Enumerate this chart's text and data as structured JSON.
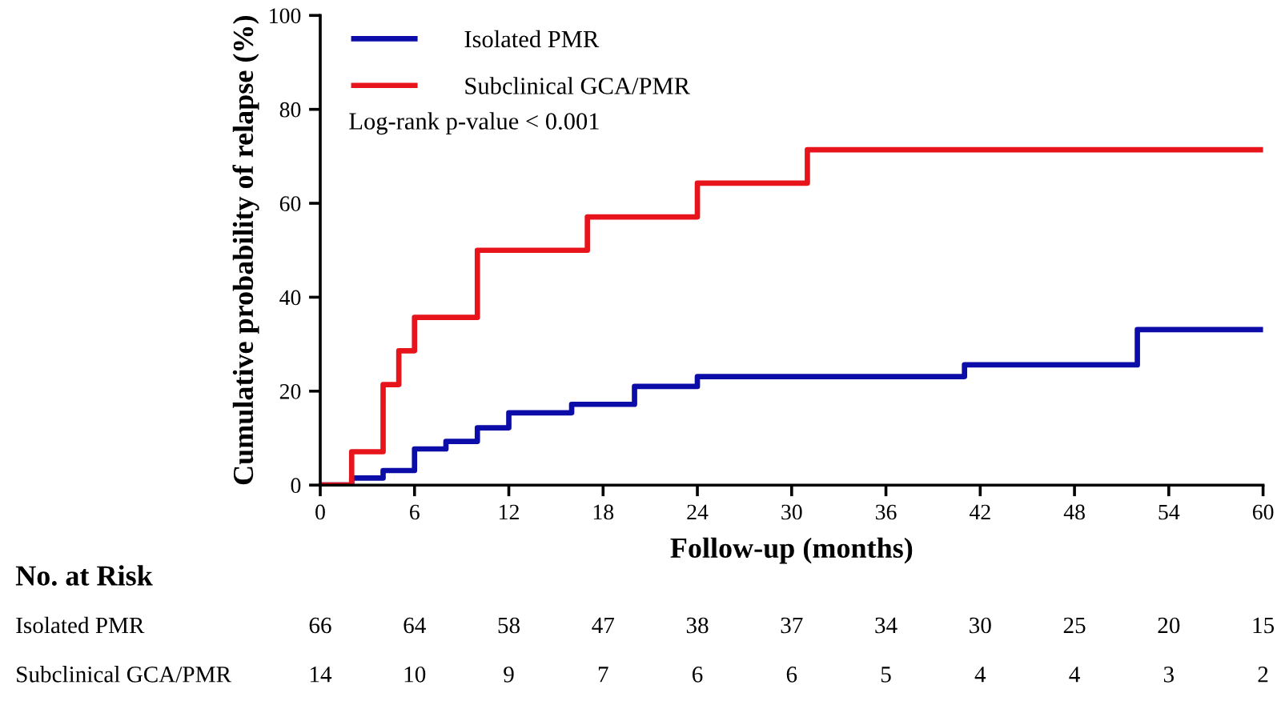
{
  "chart_data": {
    "type": "step",
    "xlabel": "Follow-up (months)",
    "ylabel": "Cumulative probability of relapse (%)",
    "series": [
      {
        "name": "Isolated PMR",
        "color": "#0c0ca8",
        "x": [
          0,
          2,
          4,
          6,
          8,
          10,
          12,
          16,
          20,
          24,
          41,
          52,
          60
        ],
        "values": [
          0,
          1.5,
          3.1,
          7.7,
          9.3,
          12.2,
          15.4,
          17.2,
          21.0,
          23.1,
          25.6,
          33.1,
          33.1
        ]
      },
      {
        "name": "Subclinical GCA/PMR",
        "color": "#e8141c",
        "x": [
          0,
          2,
          4,
          5,
          6,
          10,
          17,
          24,
          31,
          60
        ],
        "values": [
          0,
          7.1,
          21.4,
          28.6,
          35.7,
          50.0,
          57.1,
          64.3,
          71.4,
          71.4
        ]
      }
    ],
    "xlim": [
      0,
      60
    ],
    "xticks": [
      0,
      6,
      12,
      18,
      24,
      30,
      36,
      42,
      48,
      54,
      60
    ],
    "ylim": [
      0,
      100
    ],
    "yticks": [
      0,
      20,
      40,
      60,
      80,
      100
    ],
    "grid": false,
    "legend": "top left",
    "marker": "none",
    "line_style": "solid",
    "annotations": [
      "Log-rank p-value < 0.001",
      "No. at Risk",
      "Isolated PMR",
      "66",
      "64",
      "58",
      "47",
      "38",
      "37",
      "34",
      "30",
      "25",
      "20",
      "15",
      "Subclinical GCA/PMR",
      "14",
      "10",
      "9",
      "7",
      "6",
      "6",
      "5",
      "4",
      "4",
      "3",
      "2"
    ]
  }
}
